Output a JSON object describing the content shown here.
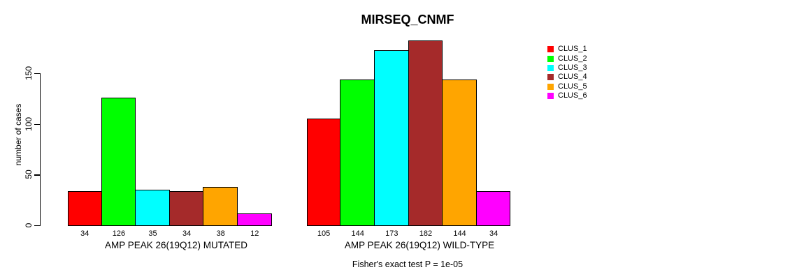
{
  "title": "MIRSEQ_CNMF",
  "caption": "Fisher's exact test P = 1e-05",
  "chart_data": {
    "type": "bar",
    "title": "MIRSEQ_CNMF",
    "xlabel": "",
    "ylabel": "number of cases",
    "ylim": [
      0,
      150
    ],
    "y_ticks": [
      0,
      50,
      100,
      150
    ],
    "grid": false,
    "legend_position": "right",
    "clusters": [
      "CLUS_1",
      "CLUS_2",
      "CLUS_3",
      "CLUS_4",
      "CLUS_5",
      "CLUS_6"
    ],
    "cluster_colors": [
      "#FF0000",
      "#00FF00",
      "#00FFFF",
      "#A52A2A",
      "#FFA500",
      "#FF00FF"
    ],
    "groups": [
      {
        "label": "AMP PEAK 26(19Q12) MUTATED",
        "values": [
          34,
          126,
          35,
          34,
          38,
          12
        ]
      },
      {
        "label": "AMP PEAK 26(19Q12) WILD-TYPE",
        "values": [
          105,
          144,
          173,
          182,
          144,
          34
        ]
      }
    ],
    "annotation": "Fisher's exact test P = 1e-05"
  },
  "legend": {
    "items": [
      {
        "label": "CLUS_1",
        "color": "#FF0000"
      },
      {
        "label": "CLUS_2",
        "color": "#00FF00"
      },
      {
        "label": "CLUS_3",
        "color": "#00FFFF"
      },
      {
        "label": "CLUS_4",
        "color": "#A52A2A"
      },
      {
        "label": "CLUS_5",
        "color": "#FFA500"
      },
      {
        "label": "CLUS_6",
        "color": "#FF00FF"
      }
    ]
  }
}
